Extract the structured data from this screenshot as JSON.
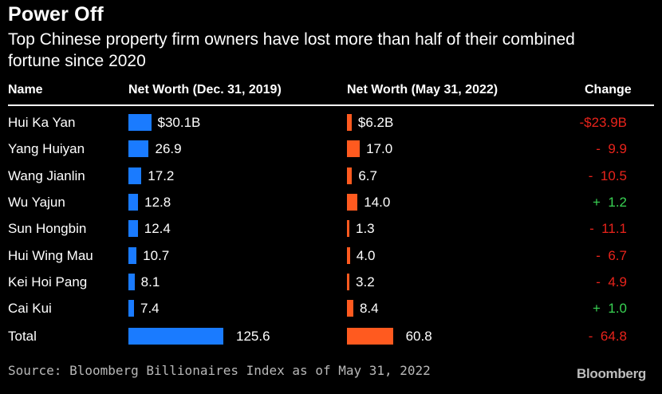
{
  "title": "Power Off",
  "subtitle": "Top Chinese property firm owners have lost more than half of their combined fortune since 2020",
  "headers": {
    "name": "Name",
    "net_2019": "Net Worth (Dec. 31, 2019)",
    "net_2022": "Net Worth (May 31, 2022)",
    "change": "Change"
  },
  "source": "Source: Bloomberg Billionaires Index as of May 31, 2022",
  "brand": "Bloomberg",
  "colors": {
    "net_2019": "#1a7bff",
    "net_2022": "#ff5a1f",
    "negative": "#e8231b",
    "positive": "#39d353"
  },
  "chart_data": {
    "type": "bar",
    "categories": [
      "Hui Ka Yan",
      "Yang Huiyan",
      "Wang Jianlin",
      "Wu Yajun",
      "Sun Hongbin",
      "Hui Wing Mau",
      "Kei Hoi Pang",
      "Cai Kui",
      "Total"
    ],
    "series": [
      {
        "name": "Net Worth (Dec. 31, 2019)",
        "values": [
          30.1,
          26.9,
          17.2,
          12.8,
          12.4,
          10.7,
          8.1,
          7.4,
          125.6
        ],
        "labels": [
          "$30.1B",
          "26.9",
          "17.2",
          "12.8",
          "12.4",
          "10.7",
          "8.1",
          "7.4",
          "125.6"
        ]
      },
      {
        "name": "Net Worth (May 31, 2022)",
        "values": [
          6.2,
          17.0,
          6.7,
          14.0,
          1.3,
          4.0,
          3.2,
          8.4,
          60.8
        ],
        "labels": [
          "$6.2B",
          "17.0",
          "6.7",
          "14.0",
          "1.3",
          "4.0",
          "3.2",
          "8.4",
          "60.8"
        ]
      }
    ],
    "change": {
      "values": [
        -23.9,
        -9.9,
        -10.5,
        1.2,
        -11.1,
        -6.7,
        -4.9,
        1.0,
        -64.8
      ],
      "labels": [
        "-$23.9B",
        "-  9.9",
        "-  10.5",
        "+  1.2",
        "-  11.1",
        "-  6.7",
        "-  4.9",
        "+  1.0",
        "-  64.8"
      ]
    },
    "xlim": [
      0,
      125.6
    ]
  }
}
